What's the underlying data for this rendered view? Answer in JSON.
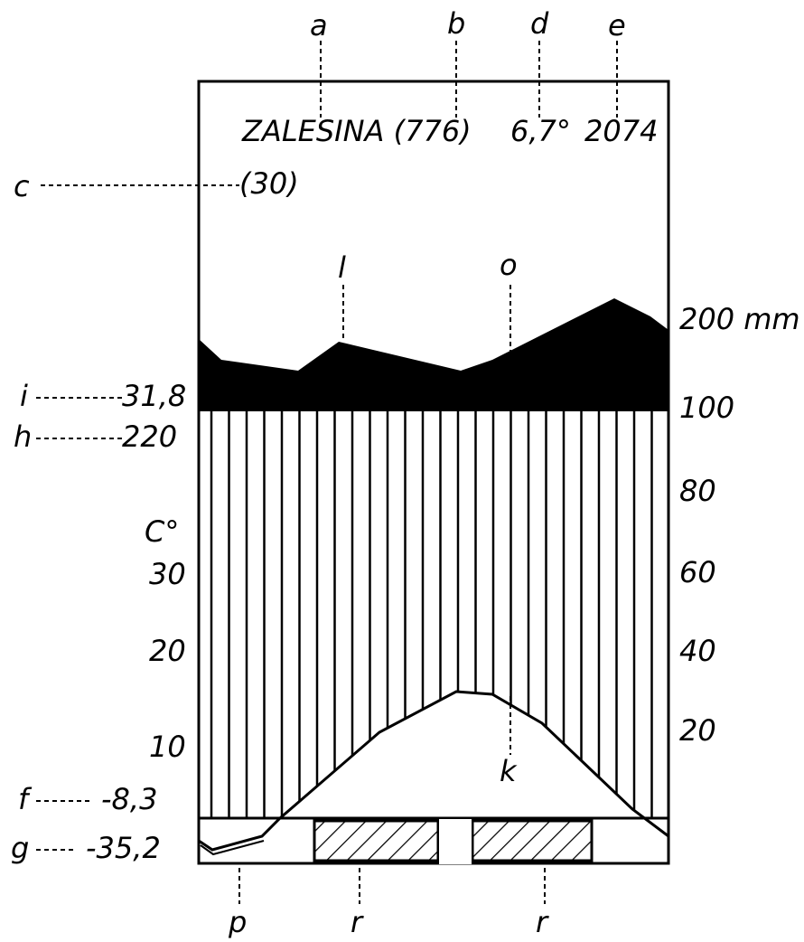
{
  "station": {
    "name": "ZALESINA (776)",
    "years": "(30)",
    "mean_temp": "6,7°",
    "precip": "2074"
  },
  "left_values": {
    "i": "31,8",
    "h": "220",
    "f": "-8,3",
    "g": "-35,2"
  },
  "temp_axis": {
    "unit": "C°",
    "ticks": [
      "30",
      "20",
      "10"
    ]
  },
  "precip_axis": {
    "ticks": [
      "200 mm",
      "100",
      "80",
      "60",
      "40",
      "20"
    ]
  },
  "letters": {
    "a": "a",
    "b": "b",
    "d": "d",
    "e": "e",
    "c": "c",
    "i": "i",
    "h": "h",
    "f": "f",
    "g": "g",
    "l": "l",
    "o": "o",
    "k": "k",
    "p": "p",
    "r1": "r",
    "r2": "r"
  }
}
